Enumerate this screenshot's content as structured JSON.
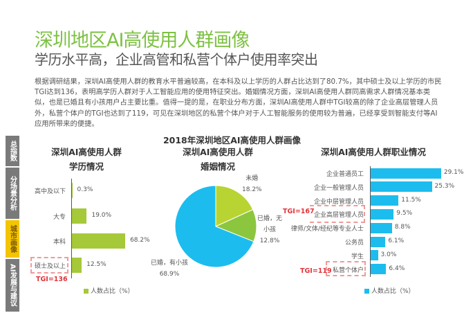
{
  "header": {
    "title": "深圳地区AI高使用人群画像",
    "subtitle": "学历水平高，企业高管和私营个体户使用率突出"
  },
  "paragraph": "根据调研结果，深圳AI高使用人群的教育水平普遍较高，在本科及以上学历的人群占比达到了80.7%，其中硕士及以上学历的市民TGI达到136，表明高学历人群对于人工智能应用的使用特征突出。婚姻情况方面，深圳AI高使用人群同高需求人群情况基本类似，也是已婚且有小孩用户占主要比重。值得一提的是，在职业分布方面，深圳AI高使用人群中TGI较高的除了企业高层管理人员外，私营个体户的TGI也达到了119，可见在深圳地区的私营个体户对于人工智能服务的使用较为普遍，已经享受到智能支付等AI应用所带来的便捷。",
  "sidebar": [
    {
      "label": "总指数",
      "active": false
    },
    {
      "label": "分场景分析",
      "active": false
    },
    {
      "label": "城市画像",
      "active": true
    },
    {
      "label": "AI发展与建议",
      "active": false
    }
  ],
  "colors": {
    "green": "#a6c93a",
    "blue": "#1cbdee",
    "lime": "#b8d432",
    "midgreen": "#8cc63f",
    "title": "#7dc242",
    "tgi": "#e0343a"
  },
  "chart_data": [
    {
      "type": "bar",
      "orientation": "horizontal",
      "overall_title": "2018年深圳地区AI高使用人群画像",
      "title_lines": [
        "深圳AI高使用人群",
        "学历情况"
      ],
      "categories": [
        "高中及以下",
        "大专",
        "本科",
        "硕士及以上"
      ],
      "values": [
        0.3,
        19.0,
        68.2,
        12.5
      ],
      "value_labels": [
        "0.3%",
        "19.0%",
        "68.2%",
        "12.5%"
      ],
      "legend": "人数占比（%）",
      "annotation": "TGI=136",
      "highlight_index": 3
    },
    {
      "type": "pie",
      "title_lines": [
        "深圳AI高使用人群",
        "婚姻情况"
      ],
      "slices": [
        {
          "label": "未婚",
          "value": 18.2,
          "value_label": "18.2%"
        },
        {
          "label": "已婚，无小孩",
          "value": 12.8,
          "value_label": "12.8%"
        },
        {
          "label": "已婚，有小孩",
          "value": 68.9,
          "value_label": "68.9%"
        }
      ]
    },
    {
      "type": "bar",
      "orientation": "horizontal",
      "title": "深圳AI高使用人群职业情况",
      "categories": [
        "企业普通员工",
        "企业一般管理人员",
        "企业中层管理人员",
        "企业高层管理人员",
        "律师/文体/经纪等专业人士",
        "公务员",
        "学生",
        "私营个体户"
      ],
      "values": [
        29.1,
        25.3,
        11.5,
        9.5,
        8.8,
        6.1,
        3.0,
        6.4
      ],
      "value_labels": [
        "29.1%",
        "25.3%",
        "11.5%",
        "9.5%",
        "8.8%",
        "6.1%",
        "3.0%",
        "6.4%"
      ],
      "legend": "人数占比（%）",
      "annotations": [
        "TGI=167",
        "TGI=119"
      ]
    }
  ]
}
